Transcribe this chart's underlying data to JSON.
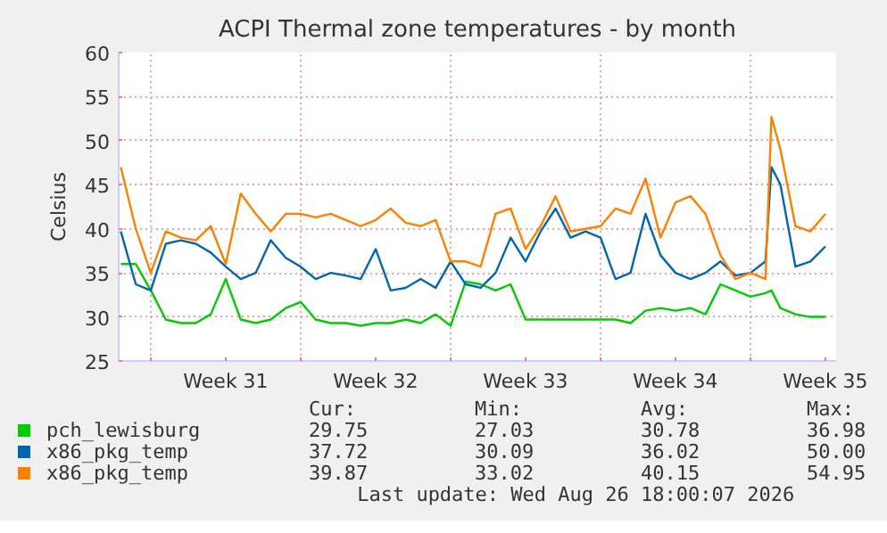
{
  "chart_data": {
    "type": "line",
    "title": "ACPI Thermal zone temperatures - by month",
    "ylabel": "Celsius",
    "x": [
      "2026-07-25T14:24",
      "2026-07-26T07:12",
      "2026-07-27T00:00",
      "2026-07-27T16:48",
      "2026-07-28T09:36",
      "2026-07-29T02:24",
      "2026-07-29T19:12",
      "2026-07-30T12:00",
      "2026-07-31T04:48",
      "2026-07-31T21:36",
      "2026-08-01T14:24",
      "2026-08-02T07:12",
      "2026-08-03T00:00",
      "2026-08-03T16:48",
      "2026-08-04T09:36",
      "2026-08-05T02:24",
      "2026-08-05T19:12",
      "2026-08-06T12:00",
      "2026-08-07T04:48",
      "2026-08-07T21:36",
      "2026-08-08T14:24",
      "2026-08-09T07:12",
      "2026-08-10T00:00",
      "2026-08-10T16:48",
      "2026-08-11T09:36",
      "2026-08-12T02:24",
      "2026-08-12T19:12",
      "2026-08-13T12:00",
      "2026-08-14T04:48",
      "2026-08-14T21:36",
      "2026-08-15T14:24",
      "2026-08-16T07:12",
      "2026-08-17T00:00",
      "2026-08-17T16:48",
      "2026-08-18T09:36",
      "2026-08-19T02:24",
      "2026-08-19T19:12",
      "2026-08-20T12:00",
      "2026-08-21T04:48",
      "2026-08-21T21:36",
      "2026-08-22T14:24",
      "2026-08-23T07:12",
      "2026-08-24T00:00",
      "2026-08-24T16:48",
      "2026-08-24T23:30",
      "2026-08-25T09:36",
      "2026-08-26T02:24",
      "2026-08-26T19:12",
      "2026-08-27T12:00"
    ],
    "series": [
      {
        "name": "pch_lewisburg",
        "color": "#00cc00",
        "values": [
          36,
          36,
          33,
          29.7,
          29.3,
          29.3,
          30.3,
          34.3,
          29.7,
          29.3,
          29.7,
          31,
          31.7,
          29.7,
          29.3,
          29.3,
          29,
          29.3,
          29.3,
          29.7,
          29.3,
          30.3,
          29,
          34,
          33.7,
          33,
          33.7,
          29.7,
          29.7,
          29.7,
          29.7,
          29.7,
          29.7,
          29.7,
          29.3,
          30.7,
          31,
          30.7,
          31,
          30.3,
          33.7,
          33,
          32.3,
          32.7,
          33,
          31,
          30.3,
          30,
          30
        ]
      },
      {
        "name": "x86_pkg_temp",
        "color": "#0066b3",
        "values": [
          39.7,
          33.7,
          33,
          38.3,
          38.7,
          38.3,
          37.3,
          35.7,
          34.3,
          35,
          38.7,
          36.7,
          35.7,
          34.3,
          35,
          34.7,
          34.3,
          37.7,
          33,
          33.3,
          34.3,
          33.3,
          36.3,
          33.7,
          33.3,
          35,
          39,
          36.3,
          39.7,
          42.3,
          39,
          39.7,
          39,
          34.3,
          35,
          41.7,
          37,
          35,
          34.3,
          35,
          36.3,
          34.7,
          35,
          36.3,
          47,
          45,
          35.7,
          36.3,
          38
        ]
      },
      {
        "name": "x86_pkg_temp",
        "color": "#ff8000",
        "values": [
          47,
          40,
          35,
          39.7,
          39,
          38.7,
          40.3,
          36,
          44,
          41.7,
          39.7,
          41.7,
          41.7,
          41.3,
          41.7,
          41,
          40.3,
          41,
          42.3,
          40.7,
          40.3,
          41,
          36.3,
          36.3,
          35.7,
          41.7,
          42.3,
          37.7,
          40.3,
          43.7,
          39.7,
          40,
          40.3,
          42.3,
          41.7,
          45.7,
          39,
          43,
          43.7,
          41.7,
          37,
          34.3,
          35,
          34.3,
          52.7,
          49,
          40.3,
          39.7,
          41.7
        ]
      }
    ],
    "xlim": [
      "2026-07-25T12:00",
      "2026-08-28T00:00"
    ],
    "xticks": [
      {
        "value": "2026-07-27",
        "label": null
      },
      {
        "value": "2026-07-30T12:00",
        "label": "Week 31"
      },
      {
        "value": "2026-08-03",
        "label": null
      },
      {
        "value": "2026-08-06T12:00",
        "label": "Week 32"
      },
      {
        "value": "2026-08-10",
        "label": null
      },
      {
        "value": "2026-08-13T12:00",
        "label": "Week 33"
      },
      {
        "value": "2026-08-17",
        "label": null
      },
      {
        "value": "2026-08-20T12:00",
        "label": "Week 34"
      },
      {
        "value": "2026-08-24",
        "label": null
      },
      {
        "value": "2026-08-27T12:00",
        "label": "Week 35"
      }
    ],
    "ylim": [
      25,
      60
    ],
    "yticks": [
      25,
      30,
      35,
      40,
      45,
      50,
      55,
      60
    ],
    "grid": true,
    "legend": "bottom",
    "line_style": "solid",
    "marker": "none",
    "annotations": [
      "Cur:",
      "Min:",
      "Avg:",
      "Max:",
      "29.75",
      "27.03",
      "30.78",
      "36.98",
      "37.72",
      "30.09",
      "36.02",
      "50.00",
      "39.87",
      "33.02",
      "40.15",
      "54.95",
      "Last update: Wed Aug 26 18:00:07 2026"
    ]
  }
}
